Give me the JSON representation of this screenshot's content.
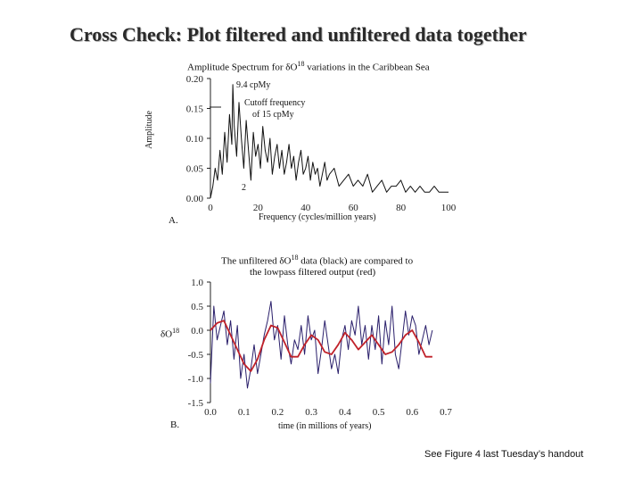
{
  "slide": {
    "title": "Cross Check: Plot filtered and unfiltered data together",
    "footer": "See Figure 4 last Tuesday’s handout"
  },
  "colors": {
    "unfiltered": "#2a1f6b",
    "filtered": "#c0222a",
    "spectrum": "#111111"
  },
  "chart_data": [
    {
      "type": "line",
      "panel_label": "A.",
      "title": "Amplitude Spectrum for",
      "title_symbol": "δO",
      "title_sup": "18",
      "title_suffix": "variations in the Caribbean Sea",
      "xlabel": "Frequency (cycles/million years)",
      "ylabel": "Amplitude",
      "xlim": [
        0,
        100
      ],
      "ylim": [
        0,
        0.2
      ],
      "xticks": [
        "0",
        "20",
        "40",
        "60",
        "80",
        "100"
      ],
      "yticks": [
        "0.00",
        "0.05",
        "0.10",
        "0.15",
        "0.20"
      ],
      "annotations": [
        "9.4 cpMy",
        "Cutoff frequency",
        "of 15 cpMy",
        "2"
      ],
      "series": [
        {
          "x": [
            0,
            1,
            2,
            3,
            4,
            5,
            6,
            7,
            8,
            9,
            9.4,
            10,
            11,
            12,
            13,
            14,
            15,
            16,
            17,
            18,
            19,
            20,
            21,
            22,
            23,
            24,
            25,
            26,
            27,
            28,
            29,
            30,
            31,
            32,
            33,
            34,
            35,
            36,
            37,
            38,
            39,
            40,
            41,
            42,
            43,
            44,
            45,
            46,
            47,
            48,
            49,
            50,
            52,
            54,
            56,
            58,
            60,
            62,
            64,
            66,
            68,
            70,
            72,
            74,
            76,
            78,
            80,
            82,
            84,
            86,
            88,
            90,
            92,
            94,
            96,
            98,
            100
          ],
          "y": [
            0.0,
            0.02,
            0.05,
            0.03,
            0.08,
            0.04,
            0.11,
            0.06,
            0.14,
            0.09,
            0.19,
            0.12,
            0.07,
            0.16,
            0.1,
            0.05,
            0.13,
            0.08,
            0.03,
            0.11,
            0.07,
            0.09,
            0.05,
            0.12,
            0.08,
            0.06,
            0.1,
            0.04,
            0.07,
            0.09,
            0.05,
            0.08,
            0.04,
            0.06,
            0.09,
            0.05,
            0.07,
            0.03,
            0.06,
            0.08,
            0.04,
            0.05,
            0.07,
            0.03,
            0.06,
            0.04,
            0.05,
            0.02,
            0.04,
            0.06,
            0.03,
            0.04,
            0.05,
            0.02,
            0.03,
            0.04,
            0.02,
            0.03,
            0.02,
            0.04,
            0.01,
            0.02,
            0.03,
            0.01,
            0.02,
            0.02,
            0.03,
            0.01,
            0.02,
            0.01,
            0.02,
            0.01,
            0.01,
            0.02,
            0.01,
            0.01,
            0.01
          ]
        }
      ]
    },
    {
      "type": "line",
      "panel_label": "B.",
      "title_lines": [
        "The unfiltered",
        "data (black) are compared to",
        "the lowpass filtered output (red)"
      ],
      "title_symbol": "δO",
      "title_sup": "18",
      "xlabel": "time (in millions of years)",
      "ylabel": "δO",
      "ylabel_sup": "18",
      "xlim": [
        0,
        0.7
      ],
      "ylim": [
        -1.5,
        1.0
      ],
      "xticks": [
        "0.0",
        "0.1",
        "0.2",
        "0.3",
        "0.4",
        "0.5",
        "0.6",
        "0.7"
      ],
      "yticks": [
        "1.0",
        "0.5",
        "0.0",
        "-0.5",
        "-1.0",
        "-1.5"
      ],
      "series": [
        {
          "name": "unfiltered",
          "x": [
            0.0,
            0.01,
            0.02,
            0.03,
            0.04,
            0.05,
            0.06,
            0.07,
            0.08,
            0.09,
            0.1,
            0.11,
            0.12,
            0.13,
            0.14,
            0.15,
            0.16,
            0.17,
            0.18,
            0.19,
            0.2,
            0.21,
            0.22,
            0.23,
            0.24,
            0.25,
            0.26,
            0.27,
            0.28,
            0.29,
            0.3,
            0.31,
            0.32,
            0.33,
            0.34,
            0.35,
            0.36,
            0.37,
            0.38,
            0.39,
            0.4,
            0.41,
            0.42,
            0.43,
            0.44,
            0.45,
            0.46,
            0.47,
            0.48,
            0.49,
            0.5,
            0.51,
            0.52,
            0.53,
            0.54,
            0.55,
            0.56,
            0.57,
            0.58,
            0.59,
            0.6,
            0.61,
            0.62,
            0.63,
            0.64,
            0.65,
            0.66
          ],
          "y": [
            -1.1,
            0.5,
            -0.2,
            0.1,
            0.4,
            -0.3,
            0.2,
            -0.6,
            0.1,
            -1.0,
            -0.5,
            -1.2,
            -0.8,
            -0.3,
            -0.9,
            -0.5,
            -0.1,
            0.2,
            0.6,
            -0.2,
            0.1,
            -0.6,
            0.3,
            -0.3,
            -0.7,
            -0.2,
            -0.4,
            0.1,
            -0.5,
            0.3,
            -0.2,
            0.0,
            -0.9,
            -0.4,
            0.2,
            -0.3,
            -0.8,
            -0.5,
            -0.9,
            -0.2,
            0.1,
            -0.4,
            0.2,
            -0.1,
            0.5,
            -0.3,
            0.1,
            -0.6,
            0.1,
            -0.4,
            0.3,
            -0.7,
            0.2,
            -0.3,
            0.5,
            -0.5,
            -0.8,
            -0.2,
            0.4,
            -0.1,
            0.3,
            0.1,
            -0.5,
            -0.2,
            0.1,
            -0.3,
            0.0
          ]
        },
        {
          "name": "filtered",
          "x": [
            0.0,
            0.02,
            0.04,
            0.06,
            0.08,
            0.1,
            0.12,
            0.14,
            0.16,
            0.18,
            0.2,
            0.22,
            0.24,
            0.26,
            0.28,
            0.3,
            0.32,
            0.34,
            0.36,
            0.38,
            0.4,
            0.42,
            0.44,
            0.46,
            0.48,
            0.5,
            0.52,
            0.54,
            0.56,
            0.58,
            0.6,
            0.62,
            0.64,
            0.66
          ],
          "y": [
            0.0,
            0.15,
            0.2,
            -0.1,
            -0.4,
            -0.7,
            -0.85,
            -0.6,
            -0.2,
            0.1,
            0.05,
            -0.25,
            -0.55,
            -0.55,
            -0.3,
            -0.1,
            -0.2,
            -0.45,
            -0.5,
            -0.3,
            -0.05,
            -0.2,
            -0.4,
            -0.25,
            -0.1,
            -0.3,
            -0.5,
            -0.45,
            -0.3,
            -0.1,
            0.0,
            -0.25,
            -0.55,
            -0.55
          ]
        }
      ]
    }
  ]
}
